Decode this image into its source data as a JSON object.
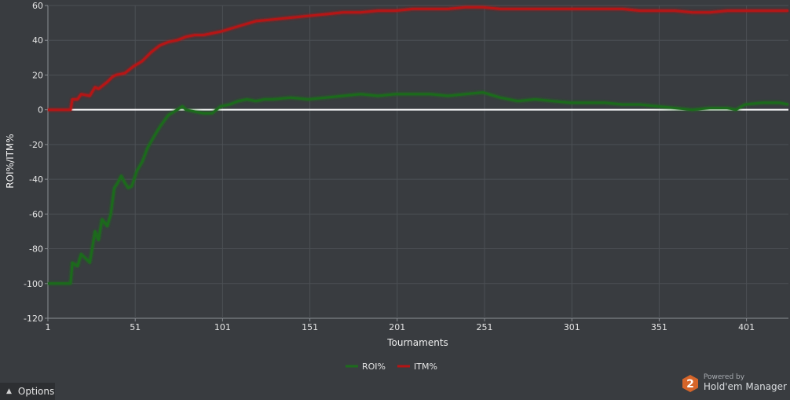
{
  "chart_data": {
    "type": "line",
    "xlabel": "Tournaments",
    "ylabel": "ROI%/ITM%",
    "xlim": [
      1,
      425
    ],
    "ylim": [
      -120,
      60
    ],
    "x_ticks": [
      1,
      51,
      101,
      151,
      201,
      251,
      301,
      351,
      401
    ],
    "y_ticks": [
      -120,
      -100,
      -80,
      -60,
      -40,
      -20,
      0,
      20,
      40,
      60
    ],
    "grid": true,
    "zero_line": true,
    "legend_position": "bottom-center",
    "series": [
      {
        "name": "ROI%",
        "color": "#1d6b1d",
        "x": [
          1,
          14,
          15,
          18,
          20,
          25,
          28,
          30,
          32,
          35,
          37,
          39,
          41,
          43,
          45,
          47,
          49,
          52,
          55,
          58,
          62,
          65,
          70,
          75,
          78,
          80,
          85,
          90,
          95,
          100,
          105,
          110,
          115,
          120,
          125,
          130,
          140,
          150,
          160,
          170,
          180,
          190,
          200,
          210,
          220,
          230,
          240,
          250,
          260,
          270,
          280,
          290,
          300,
          310,
          320,
          330,
          340,
          350,
          360,
          370,
          380,
          390,
          395,
          400,
          410,
          420,
          425
        ],
        "values": [
          -100,
          -100,
          -88,
          -90,
          -83,
          -88,
          -70,
          -75,
          -63,
          -67,
          -60,
          -45,
          -42,
          -38,
          -42,
          -45,
          -44,
          -35,
          -30,
          -22,
          -15,
          -10,
          -3,
          0,
          2,
          0,
          -1,
          -2,
          -2,
          2,
          3,
          5,
          6,
          5,
          6,
          6,
          7,
          6,
          7,
          8,
          9,
          8,
          9,
          9,
          9,
          8,
          9,
          10,
          7,
          5,
          6,
          5,
          4,
          4,
          4,
          3,
          3,
          2,
          1,
          0,
          1,
          1,
          0,
          3,
          4,
          4,
          3
        ]
      },
      {
        "name": "ITM%",
        "color": "#b51414",
        "x": [
          1,
          14,
          15,
          18,
          20,
          25,
          28,
          30,
          35,
          38,
          40,
          45,
          50,
          55,
          60,
          65,
          70,
          75,
          80,
          85,
          90,
          95,
          100,
          110,
          120,
          130,
          140,
          150,
          160,
          170,
          180,
          190,
          200,
          210,
          220,
          230,
          240,
          250,
          260,
          270,
          280,
          290,
          300,
          310,
          320,
          330,
          340,
          350,
          360,
          370,
          380,
          390,
          400,
          410,
          420,
          425
        ],
        "values": [
          0,
          0,
          6,
          6,
          9,
          8,
          13,
          12,
          16,
          19,
          20,
          21,
          25,
          28,
          33,
          37,
          39,
          40,
          42,
          43,
          43,
          44,
          45,
          48,
          51,
          52,
          53,
          54,
          55,
          56,
          56,
          57,
          57,
          58,
          58,
          58,
          59,
          59,
          58,
          58,
          58,
          58,
          58,
          58,
          58,
          58,
          57,
          57,
          57,
          56,
          56,
          57,
          57,
          57,
          57,
          57
        ]
      }
    ]
  },
  "ui": {
    "options_label": "Options",
    "options_icon": "caret-up-icon",
    "brand_powered": "Powered by",
    "brand_name": "Hold'em Manager",
    "brand_logo_digit": "2",
    "brand_logo_color": "#d5652a"
  }
}
